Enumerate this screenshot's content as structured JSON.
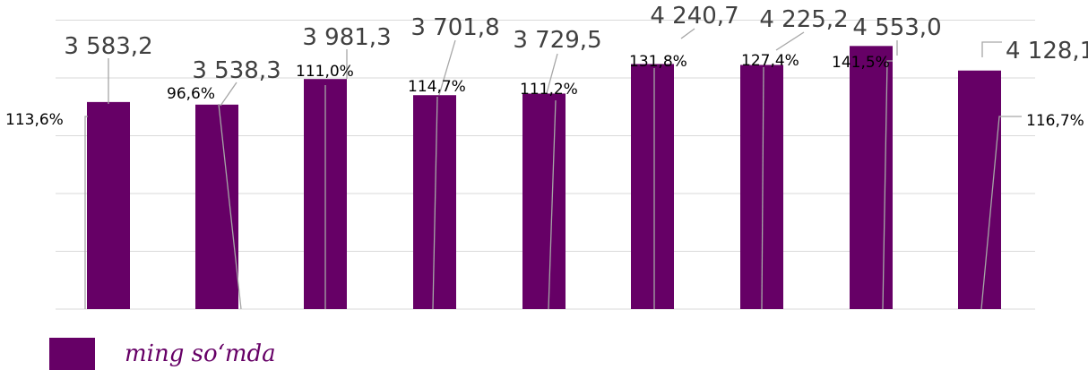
{
  "chart_data": {
    "type": "bar",
    "series": [
      {
        "name": "ming so‘mda",
        "values": [
          3583.2,
          3538.3,
          3981.3,
          3701.8,
          3729.5,
          4240.7,
          4225.2,
          4553.0,
          4128.1
        ]
      }
    ],
    "value_labels": [
      "3 583,2",
      "3 538,3",
      "3 981,3",
      "3 701,8",
      "3 729,5",
      "4 240,7",
      "4 225,2",
      "4 553,0",
      "4 128,1"
    ],
    "percent_labels": [
      "113,6%",
      "96,6%",
      "111,0%",
      "114,7%",
      "111,2%",
      "131,8%",
      "127,4%",
      "141,5%",
      "116,7%"
    ],
    "ylim": [
      0,
      5000
    ],
    "grid": true,
    "legend_position": "bottom-left",
    "colors": {
      "bar": "#660066",
      "grid": "#d9d9d9",
      "leader": "#a6a6a6"
    }
  }
}
